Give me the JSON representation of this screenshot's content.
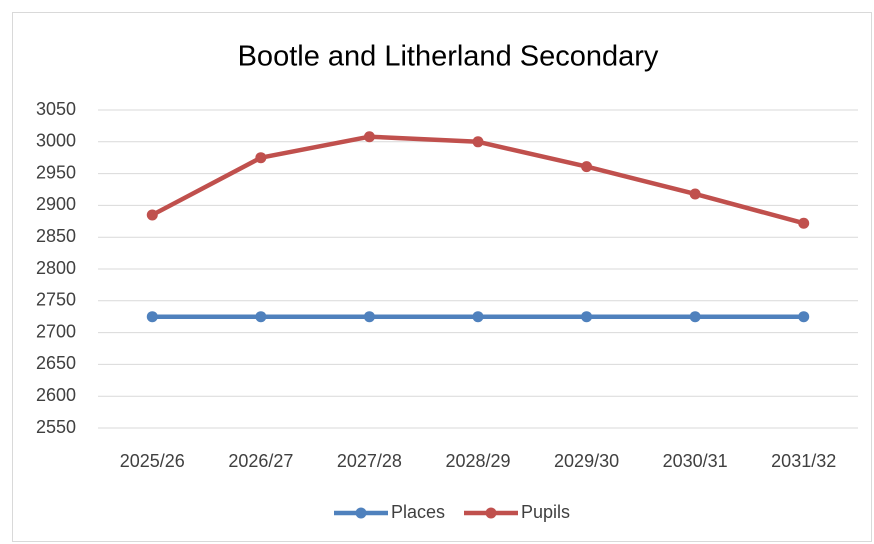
{
  "chart_data": {
    "type": "line",
    "title": "Bootle and Litherland Secondary",
    "categories": [
      "2025/26",
      "2026/27",
      "2027/28",
      "2028/29",
      "2029/30",
      "2030/31",
      "2031/32"
    ],
    "series": [
      {
        "name": "Places",
        "color": "#4f81bd",
        "values": [
          2725,
          2725,
          2725,
          2725,
          2725,
          2725,
          2725
        ]
      },
      {
        "name": "Pupils",
        "color": "#c0504d",
        "values": [
          2885,
          2975,
          3008,
          3000,
          2961,
          2918,
          2872
        ]
      }
    ],
    "ylim": [
      2550,
      3050
    ],
    "yticks": [
      2550,
      2600,
      2650,
      2700,
      2750,
      2800,
      2850,
      2900,
      2950,
      3000,
      3050
    ],
    "grid": true,
    "legend": "bottom"
  }
}
